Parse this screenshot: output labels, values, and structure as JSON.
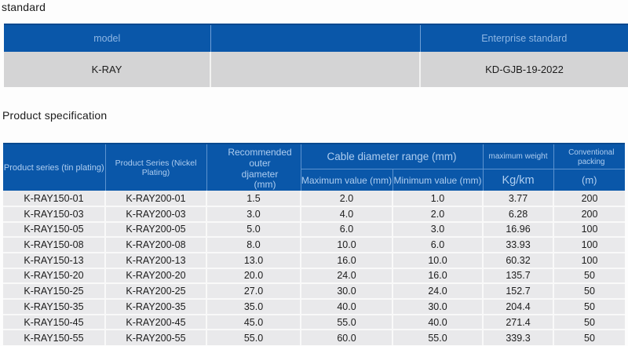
{
  "titles": {
    "standard_section": "standard",
    "spec_section": "Product specification"
  },
  "standard_table": {
    "headers": [
      "model",
      "",
      "Enterprise standard"
    ],
    "rows": [
      [
        "K-RAY",
        "",
        "KD-GJB-19-2022"
      ]
    ]
  },
  "spec_table": {
    "headers": {
      "series_tin": "Product series (tin plating)",
      "series_nickel": "Product Series (Nickel Plating)",
      "recommended_line1": "Recommended outer",
      "recommended_line2": "djameter",
      "recommended_line3": "(mm)",
      "cable_range": "Cable diameter range (mm)",
      "max_value": "Maximum value (mm)",
      "min_value": "Minimum value (mm)",
      "max_weight": "maximum weight",
      "weight_unit": "Kg/km",
      "packing": "Conventional packing",
      "packing_unit": "(m)"
    },
    "rows": [
      [
        "K-RAY150-01",
        "K-RAY200-01",
        "1.5",
        "2.0",
        "1.0",
        "3.77",
        "200"
      ],
      [
        "K-RAY150-03",
        "K-RAY200-03",
        "3.0",
        "4.0",
        "2.0",
        "6.28",
        "200"
      ],
      [
        "K-RAY150-05",
        "K-RAY200-05",
        "5.0",
        "6.0",
        "3.0",
        "16.96",
        "100"
      ],
      [
        "K-RAY150-08",
        "K-RAY200-08",
        "8.0",
        "10.0",
        "6.0",
        "33.93",
        "100"
      ],
      [
        "K-RAY150-13",
        "K-RAY200-13",
        "13.0",
        "16.0",
        "10.0",
        "60.32",
        "100"
      ],
      [
        "K-RAY150-20",
        "K-RAY200-20",
        "20.0",
        "24.0",
        "16.0",
        "135.7",
        "50"
      ],
      [
        "K-RAY150-25",
        "K-RAY200-25",
        "27.0",
        "30.0",
        "24.0",
        "152.7",
        "50"
      ],
      [
        "K-RAY150-35",
        "K-RAY200-35",
        "35.0",
        "40.0",
        "30.0",
        "204.4",
        "50"
      ],
      [
        "K-RAY150-45",
        "K-RAY200-45",
        "45.0",
        "55.0",
        "40.0",
        "271.4",
        "50"
      ],
      [
        "K-RAY150-55",
        "K-RAY200-55",
        "55.0",
        "60.0",
        "55.0",
        "339.3",
        "50"
      ]
    ]
  },
  "colors": {
    "header_blue": "#0a57a9",
    "header_text_light_blue": "#aecdf0",
    "standard_row_gray": "#d4d4d5",
    "spec_row_gray": "#e9e9eb",
    "page_background": "#fdfdfd"
  }
}
